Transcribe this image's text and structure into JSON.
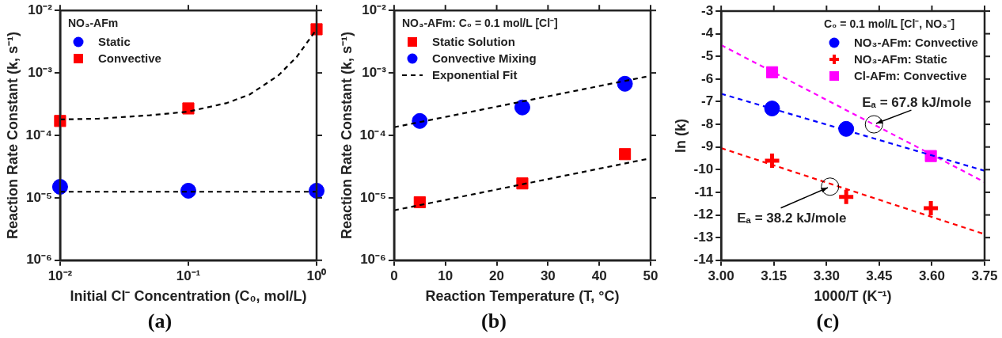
{
  "chart_data": [
    {
      "type": "scatter",
      "title": "(a)",
      "xlabel": "Initial Cl⁻ Concentration (C₀, mol/L)",
      "ylabel": "Reaction Rate Constant (k, s⁻¹)",
      "legend_title": "NO₃-AFm",
      "legend": "top left",
      "log": "xy",
      "xlim": [
        0.01,
        1
      ],
      "xticks": [
        {
          "value": 0.01,
          "label": "10⁻²"
        },
        {
          "value": 0.1,
          "label": "10⁻¹"
        },
        {
          "value": 1,
          "label": "10⁰"
        }
      ],
      "ylim": [
        1e-06,
        0.01
      ],
      "yticks": [
        {
          "value": 1e-06,
          "label": "10⁻⁶"
        },
        {
          "value": 1e-05,
          "label": "10⁻⁵"
        },
        {
          "value": 0.0001,
          "label": "10⁻⁴"
        },
        {
          "value": 0.001,
          "label": "10⁻³"
        },
        {
          "value": 0.01,
          "label": "10⁻²"
        }
      ],
      "x": [
        0.01,
        0.1,
        1
      ],
      "series": [
        {
          "name": "Static",
          "color": "#0000ff",
          "marker": "circle",
          "values": [
            1.5e-05,
            1.3e-05,
            1.3e-05
          ]
        },
        {
          "name": "Convective",
          "color": "#ff0000",
          "marker": "square",
          "values": [
            0.00017,
            0.00027,
            0.005
          ]
        },
        {
          "type": "line",
          "color": "#000000",
          "line_style": "dashed",
          "x": [
            0.01,
            1
          ],
          "values": [
            1.25e-05,
            1.25e-05
          ]
        },
        {
          "type": "line",
          "color": "#000000",
          "line_style": "dashed",
          "x": [
            0.01,
            0.02,
            0.05,
            0.1,
            0.2,
            0.3,
            0.5,
            0.7,
            1
          ],
          "values": [
            0.00018,
            0.000185,
            0.00021,
            0.00024,
            0.00033,
            0.00045,
            0.0009,
            0.0018,
            0.005
          ]
        }
      ]
    },
    {
      "type": "scatter",
      "title": "(b)",
      "xlabel": "Reaction Temperature (T, °C)",
      "ylabel": "Reaction Rate Constant (k, s⁻¹)",
      "legend_title": "NO₃-AFm: C₀ = 0.1 mol/L [Cl⁻]",
      "legend": "top left",
      "log": "y",
      "xlim": [
        0,
        50
      ],
      "xticks": [
        0,
        10,
        20,
        30,
        40,
        50
      ],
      "ylim": [
        1e-06,
        0.01
      ],
      "yticks": [
        {
          "value": 1e-06,
          "label": "10⁻⁶"
        },
        {
          "value": 1e-05,
          "label": "10⁻⁵"
        },
        {
          "value": 0.0001,
          "label": "10⁻⁴"
        },
        {
          "value": 0.001,
          "label": "10⁻³"
        },
        {
          "value": 0.01,
          "label": "10⁻²"
        }
      ],
      "x": [
        5,
        25,
        45
      ],
      "series": [
        {
          "name": "Static Solution",
          "color": "#ff0000",
          "marker": "square",
          "values": [
            8.5e-06,
            1.7e-05,
            5e-05
          ]
        },
        {
          "name": "Convective Mixing",
          "color": "#0000ff",
          "marker": "circle",
          "values": [
            0.00017,
            0.00028,
            0.00067
          ]
        },
        {
          "name": "Exponential Fit",
          "type": "line",
          "color": "#000000",
          "line_style": "dashed",
          "x": [
            0,
            50
          ],
          "values": [
            0.000135,
            0.0009
          ]
        },
        {
          "type": "line",
          "color": "#000000",
          "line_style": "dashed",
          "x": [
            0,
            50
          ],
          "values": [
            6.3e-06,
            4.3e-05
          ]
        }
      ]
    },
    {
      "type": "scatter",
      "title": "(c)",
      "xlabel": "1000/T (K⁻¹)",
      "ylabel": "ln (k)",
      "legend_title": "C₀ = 0.1 mol/L [Cl⁻, NO₃⁻]",
      "legend": "top right",
      "xlim": [
        3.0,
        3.75
      ],
      "xticks": [
        {
          "value": 3.0,
          "label": "3.00"
        },
        {
          "value": 3.15,
          "label": "3.15"
        },
        {
          "value": 3.3,
          "label": "3.30"
        },
        {
          "value": 3.45,
          "label": "3.45"
        },
        {
          "value": 3.6,
          "label": "3.60"
        },
        {
          "value": 3.75,
          "label": "3.75"
        }
      ],
      "ylim": [
        -14,
        -3
      ],
      "yticks": [
        -14,
        -13,
        -12,
        -11,
        -10,
        -9,
        -8,
        -7,
        -6,
        -5,
        -4,
        -3
      ],
      "annotations": [
        {
          "text": "Eₐ = 67.8 kJ/mole",
          "x": 3.435,
          "y": -8.0
        },
        {
          "text": "Eₐ = 38.2 kJ/mole",
          "x": 3.31,
          "y": -10.75
        }
      ],
      "series": [
        {
          "name": "NO₃-AFm: Convective",
          "color": "#0000ff",
          "marker": "circle",
          "x": [
            3.145,
            3.356
          ],
          "values": [
            -7.3,
            -8.2
          ]
        },
        {
          "name": "NO₃-AFm: Static",
          "color": "#ff0000",
          "marker": "cross",
          "x": [
            3.145,
            3.356,
            3.597
          ],
          "values": [
            -9.6,
            -11.2,
            -11.7
          ]
        },
        {
          "name": "Cl-AFm: Convective",
          "color": "#ff00ff",
          "marker": "square",
          "x": [
            3.145,
            3.597
          ],
          "values": [
            -5.7,
            -9.4
          ]
        },
        {
          "type": "line",
          "color": "#0000ff",
          "line_style": "dashed",
          "x": [
            3.0,
            3.75
          ],
          "values": [
            -6.65,
            -10.05
          ]
        },
        {
          "type": "line",
          "color": "#ff00ff",
          "line_style": "dashed",
          "x": [
            3.0,
            3.75
          ],
          "values": [
            -4.5,
            -10.55
          ]
        },
        {
          "type": "line",
          "color": "#ff0000",
          "line_style": "dashed",
          "x": [
            3.0,
            3.75
          ],
          "values": [
            -9.05,
            -12.85
          ]
        }
      ]
    }
  ]
}
